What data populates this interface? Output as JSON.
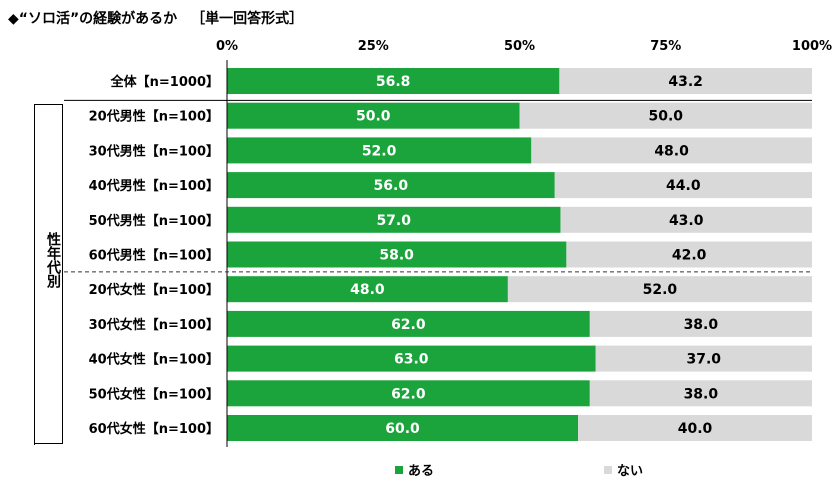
{
  "title": "◆“ソロ活”の経験があるか",
  "subtitle": "［単一回答形式］",
  "group_label": "性年代別",
  "colors": {
    "yes": "#1ba33c",
    "no": "#d9d9d9"
  },
  "chart_data": {
    "type": "bar",
    "orientation": "horizontal",
    "stacked": true,
    "xlim": [
      0,
      100
    ],
    "x_ticks": [
      "0%",
      "25%",
      "50%",
      "75%",
      "100%"
    ],
    "categories": [
      "全体【n=1000】",
      "20代男性【n=100】",
      "30代男性【n=100】",
      "40代男性【n=100】",
      "50代男性【n=100】",
      "60代男性【n=100】",
      "20代女性【n=100】",
      "30代女性【n=100】",
      "40代女性【n=100】",
      "50代女性【n=100】",
      "60代女性【n=100】"
    ],
    "series": [
      {
        "name": "ある",
        "values": [
          56.8,
          50.0,
          52.0,
          56.0,
          57.0,
          58.0,
          48.0,
          62.0,
          63.0,
          62.0,
          60.0
        ],
        "labels": [
          "56.8",
          "50.0",
          "52.0",
          "56.0",
          "57.0",
          "58.0",
          "48.0",
          "62.0",
          "63.0",
          "62.0",
          "60.0"
        ]
      },
      {
        "name": "ない",
        "values": [
          43.2,
          50.0,
          48.0,
          44.0,
          43.0,
          42.0,
          52.0,
          38.0,
          37.0,
          38.0,
          40.0
        ],
        "labels": [
          "43.2",
          "50.0",
          "48.0",
          "44.0",
          "43.0",
          "42.0",
          "52.0",
          "38.0",
          "37.0",
          "38.0",
          "40.0"
        ]
      }
    ],
    "legend_position": "bottom"
  }
}
